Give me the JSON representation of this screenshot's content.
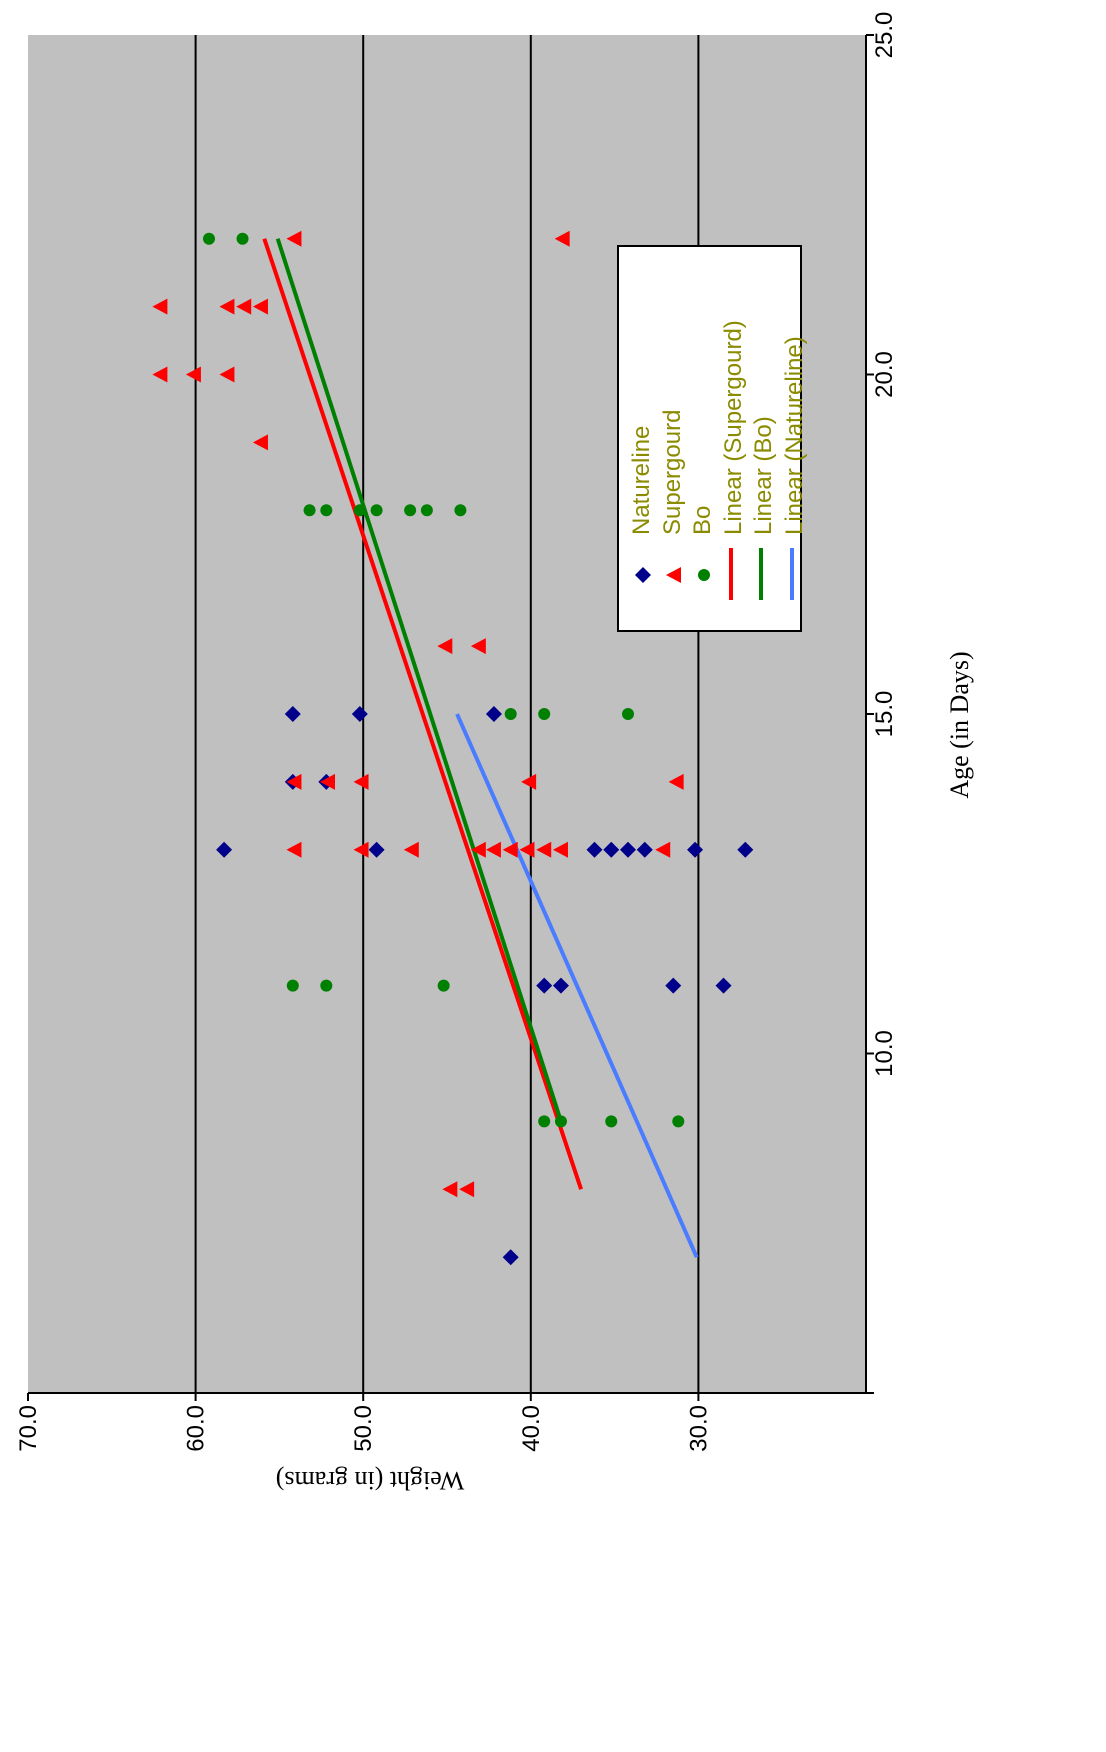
{
  "chart_data": {
    "type": "scatter",
    "xlabel": "Age (in Days)",
    "ylabel": "Weight (in grams)",
    "xlim": [
      5.0,
      25.0
    ],
    "ylim": [
      20.0,
      70.0
    ],
    "x_ticks": [
      "10.0",
      "15.0",
      "20.0",
      "25.0"
    ],
    "y_ticks": [
      "30.0",
      "40.0",
      "50.0",
      "60.0",
      "70.0"
    ],
    "grid": "horizontal",
    "orientation": "rotated-90-clockwise",
    "legend_position": "right",
    "colors": {
      "plot_background": "#c0c0c0",
      "Natureline": "#00008b",
      "Supergourd": "#ff0000",
      "Bo": "#008000",
      "Linear (Supergourd)": "#ff0000",
      "Linear (Bo)": "#008000",
      "Linear (Natureline)": "#4a7cff"
    },
    "series": [
      {
        "name": "Natureline",
        "marker": "diamond",
        "points": [
          [
            7,
            41.2
          ],
          [
            11,
            39.2
          ],
          [
            11,
            38.2
          ],
          [
            11,
            31.5
          ],
          [
            11,
            28.5
          ],
          [
            13,
            58.3
          ],
          [
            13,
            49.2
          ],
          [
            13,
            36.2
          ],
          [
            13,
            35.2
          ],
          [
            13,
            34.2
          ],
          [
            13,
            33.2
          ],
          [
            13,
            30.2
          ],
          [
            13,
            27.2
          ],
          [
            14,
            54.2
          ],
          [
            14,
            52.2
          ],
          [
            15,
            54.2
          ],
          [
            15,
            50.2
          ],
          [
            15,
            42.2
          ]
        ]
      },
      {
        "name": "Supergourd",
        "marker": "triangle",
        "points": [
          [
            8,
            44.8
          ],
          [
            8,
            43.8
          ],
          [
            13,
            54.1
          ],
          [
            13,
            50.1
          ],
          [
            13,
            47.1
          ],
          [
            13,
            43.1
          ],
          [
            13,
            42.2
          ],
          [
            13,
            41.2
          ],
          [
            13,
            40.2
          ],
          [
            13,
            39.2
          ],
          [
            13,
            38.2
          ],
          [
            13,
            32.1
          ],
          [
            14,
            54.1
          ],
          [
            14,
            52.1
          ],
          [
            14,
            50.1
          ],
          [
            14,
            40.1
          ],
          [
            14,
            31.3
          ],
          [
            16,
            45.1
          ],
          [
            16,
            43.1
          ],
          [
            19,
            56.1
          ],
          [
            20,
            62.1
          ],
          [
            20,
            60.1
          ],
          [
            20,
            58.1
          ],
          [
            21,
            62.1
          ],
          [
            21,
            58.1
          ],
          [
            21,
            57.1
          ],
          [
            21,
            56.1
          ],
          [
            22,
            54.1
          ],
          [
            22,
            38.1
          ]
        ]
      },
      {
        "name": "Bo",
        "marker": "circle",
        "points": [
          [
            9,
            39.2
          ],
          [
            9,
            38.2
          ],
          [
            9,
            35.2
          ],
          [
            9,
            31.2
          ],
          [
            11,
            54.2
          ],
          [
            11,
            52.2
          ],
          [
            11,
            45.2
          ],
          [
            15,
            41.2
          ],
          [
            15,
            39.2
          ],
          [
            15,
            34.2
          ],
          [
            18,
            53.2
          ],
          [
            18,
            52.2
          ],
          [
            18,
            50.2
          ],
          [
            18,
            49.2
          ],
          [
            18,
            47.2
          ],
          [
            18,
            46.2
          ],
          [
            18,
            44.2
          ],
          [
            22,
            59.2
          ],
          [
            22,
            57.2
          ]
        ]
      }
    ],
    "trendlines": [
      {
        "name": "Linear (Supergourd)",
        "from": [
          8,
          37.0
        ],
        "to": [
          22,
          55.9
        ]
      },
      {
        "name": "Linear (Bo)",
        "from": [
          9,
          38.2
        ],
        "to": [
          22,
          55.1
        ]
      },
      {
        "name": "Linear (Natureline)",
        "from": [
          7,
          30.1
        ],
        "to": [
          15,
          44.4
        ]
      }
    ],
    "legend": [
      "Natureline",
      "Supergourd",
      "Bo",
      "Linear (Supergourd)",
      "Linear (Bo)",
      "Linear (Natureline)"
    ]
  }
}
